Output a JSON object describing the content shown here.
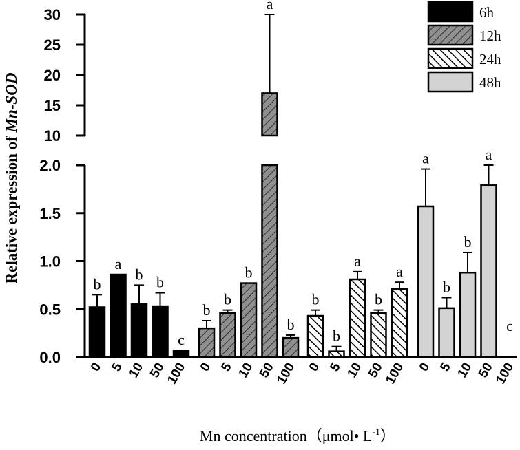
{
  "chart_data": {
    "type": "bar",
    "ylabel_prefix": "Relative expression of ",
    "ylabel_gene": "Mn-SOD",
    "xlabel_main": "Mn concentration（μmol• L",
    "xlabel_sup": "-1",
    "xlabel_close": "）",
    "categories": [
      "0",
      "5",
      "10",
      "50",
      "100"
    ],
    "yaxis_lower": {
      "range": [
        0,
        2.0
      ],
      "ticks": [
        "0.0",
        "0.5",
        "1.0",
        "1.5",
        "2.0"
      ]
    },
    "yaxis_upper": {
      "range": [
        10,
        30
      ],
      "ticks": [
        "10",
        "15",
        "20",
        "25",
        "30"
      ]
    },
    "series": [
      {
        "name": "6h",
        "fill": "solid",
        "color": "#000000",
        "values": [
          0.52,
          0.86,
          0.55,
          0.53,
          0.07
        ],
        "errors": [
          0.13,
          0.0,
          0.2,
          0.14,
          0.0
        ],
        "letters": [
          "b",
          "a",
          "b",
          "b",
          "c"
        ]
      },
      {
        "name": "12h",
        "fill": "hatch-dark",
        "color": "#8c8c8c",
        "values": [
          0.3,
          0.46,
          0.77,
          17.0,
          0.2
        ],
        "errors": [
          0.08,
          0.03,
          0.0,
          13.0,
          0.03
        ],
        "letters": [
          "b",
          "b",
          "b",
          "a",
          "b"
        ]
      },
      {
        "name": "24h",
        "fill": "hatch-white",
        "color": "#ffffff",
        "values": [
          0.43,
          0.06,
          0.81,
          0.46,
          0.71
        ],
        "errors": [
          0.06,
          0.05,
          0.08,
          0.03,
          0.07
        ],
        "letters": [
          "b",
          "b",
          "a",
          "b",
          "a"
        ]
      },
      {
        "name": "48h",
        "fill": "light",
        "color": "#d3d3d3",
        "values": [
          1.57,
          0.51,
          0.88,
          1.79,
          0.0
        ],
        "errors": [
          0.39,
          0.11,
          0.21,
          0.21,
          0.0
        ],
        "letters": [
          "a",
          "b",
          "b",
          "a",
          "c"
        ]
      }
    ]
  }
}
